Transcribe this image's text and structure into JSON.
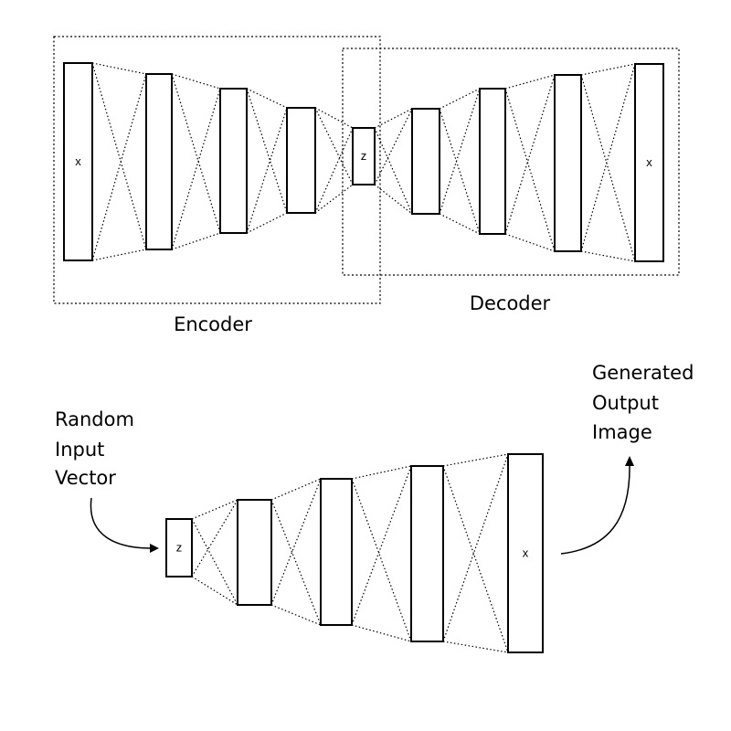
{
  "autoencoder": {
    "encoder": {
      "label": "Encoder",
      "layers": [
        {
          "label": "x"
        },
        {
          "label": ""
        },
        {
          "label": ""
        },
        {
          "label": ""
        }
      ]
    },
    "latent": {
      "label": "z"
    },
    "decoder": {
      "label": "Decoder",
      "layers": [
        {
          "label": ""
        },
        {
          "label": ""
        },
        {
          "label": ""
        },
        {
          "label": "x"
        }
      ]
    }
  },
  "generator": {
    "input_caption": [
      "Random",
      "Input",
      "Vector"
    ],
    "output_caption": [
      "Generated",
      "Output",
      "Image"
    ],
    "layers": [
      {
        "label": "z"
      },
      {
        "label": ""
      },
      {
        "label": ""
      },
      {
        "label": ""
      },
      {
        "label": "x"
      }
    ]
  }
}
